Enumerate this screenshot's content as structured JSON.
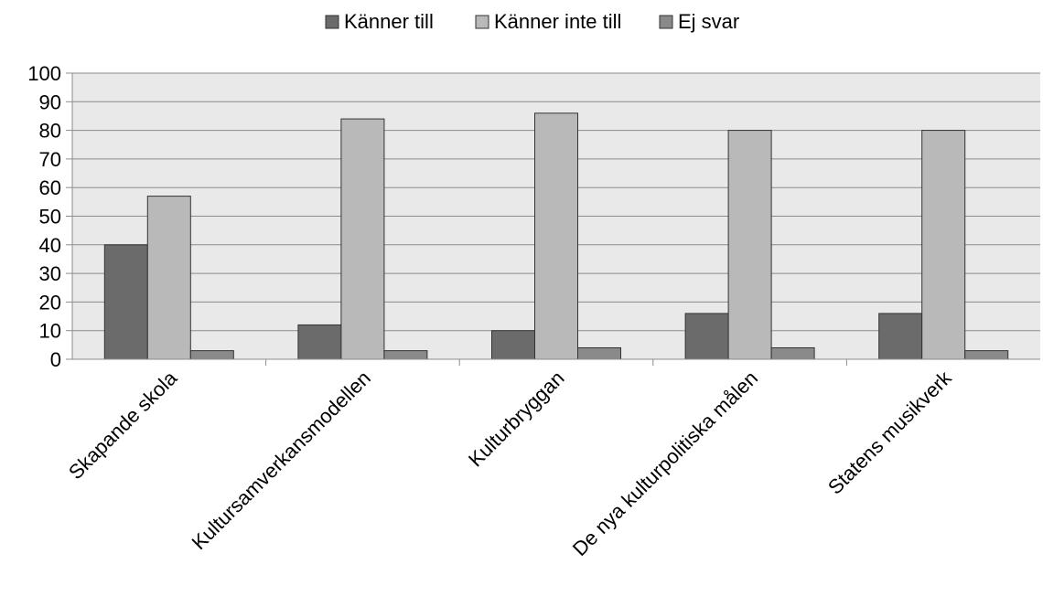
{
  "chart_data": {
    "type": "bar",
    "categories": [
      "Skapande skola",
      "Kultursamverkansmodellen",
      "Kulturbryggan",
      "De nya kulturpolitiska målen",
      "Statens musikverk"
    ],
    "series": [
      {
        "name": "Känner till",
        "color": "#6b6b6b",
        "values": [
          40,
          12,
          10,
          16,
          16
        ]
      },
      {
        "name": "Känner inte till",
        "color": "#b9b9b9",
        "values": [
          57,
          84,
          86,
          80,
          80
        ]
      },
      {
        "name": "Ej svar",
        "color": "#8a8a8a",
        "values": [
          3,
          3,
          4,
          4,
          3
        ]
      }
    ],
    "yticks": [
      "0",
      "10",
      "20",
      "30",
      "40",
      "50",
      "60",
      "70",
      "80",
      "90",
      "100"
    ],
    "ylim": [
      0,
      100
    ],
    "grid": true,
    "legend_position": "top-center",
    "plot_background": "#e9e9e9"
  }
}
